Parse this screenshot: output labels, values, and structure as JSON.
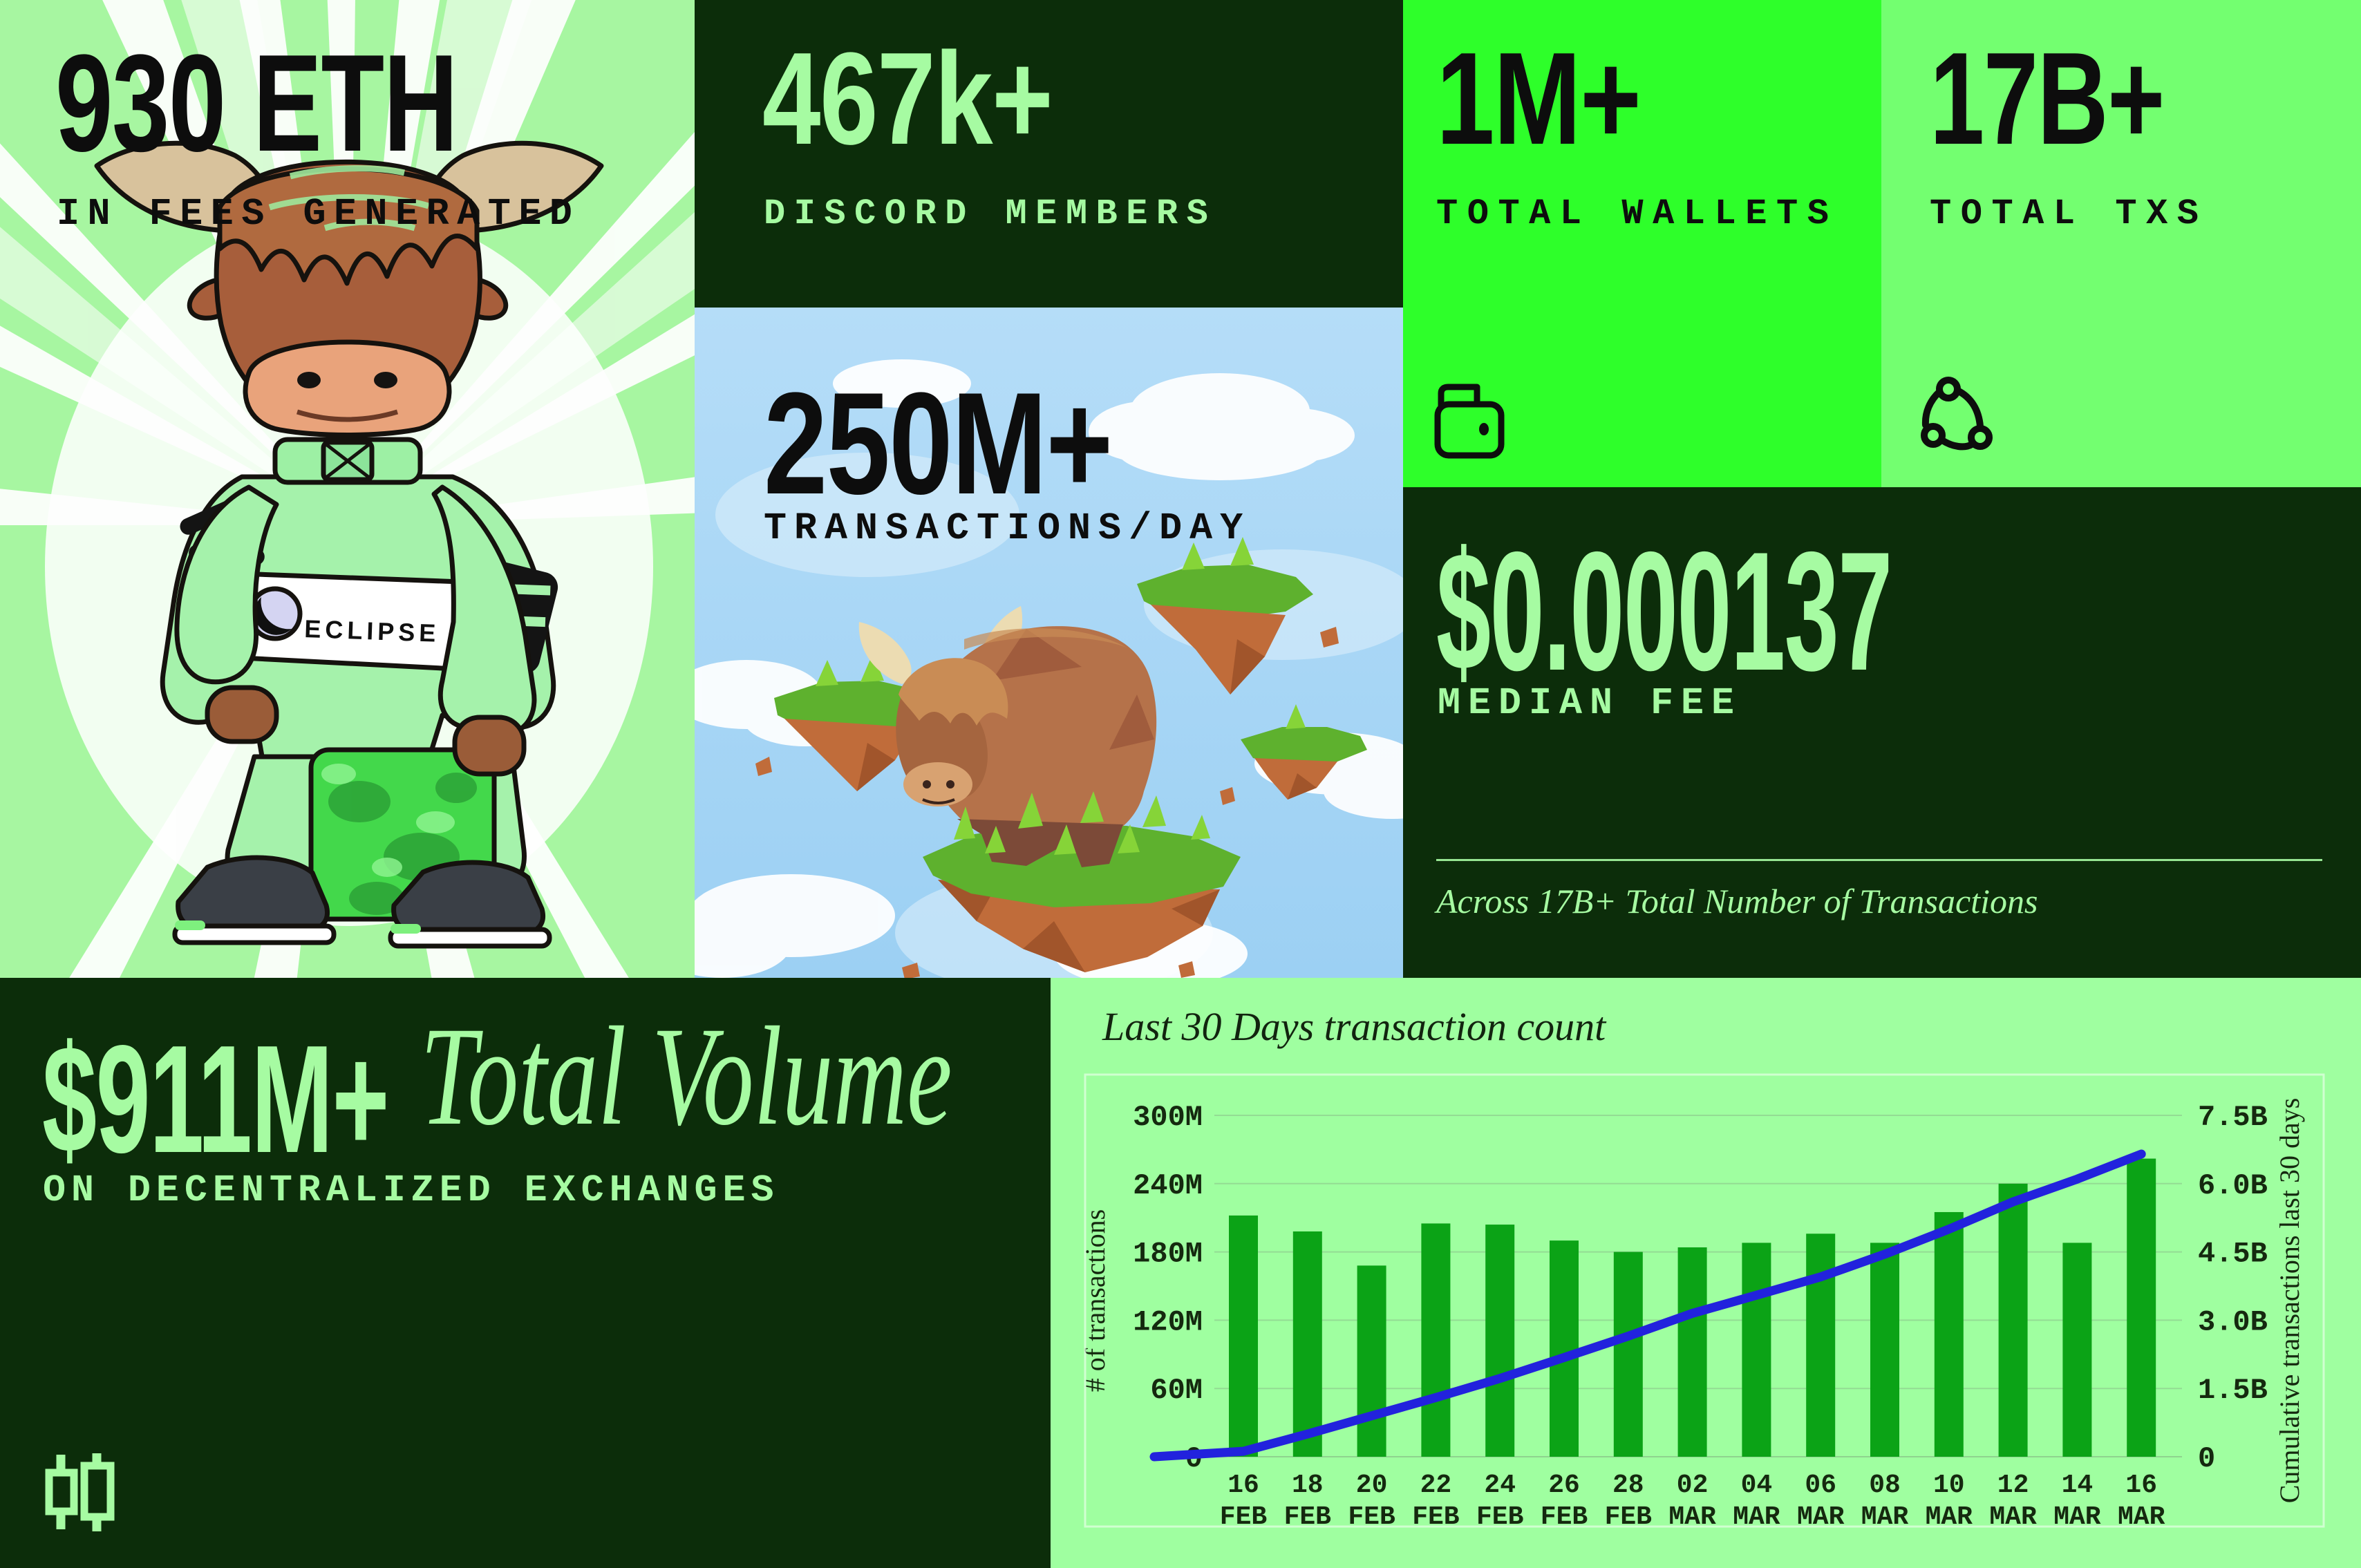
{
  "colors": {
    "light_green_bg": "#a7f6a1",
    "dark_green_bg": "#0c2d0a",
    "bright_green_bg": "#2eff2a",
    "mid_green_bg": "#73ff70",
    "chart_bg": "#9fffa0",
    "light_green_text": "#a6fba2",
    "black_text": "#0d0d0d",
    "bar_green": "#0ba316",
    "line_blue": "#2222dd",
    "sky_blue": "#aadcf8"
  },
  "icons": {
    "wallets": "wallet-icon",
    "total_txs": "cycle-icon",
    "volume": "candlestick-icon"
  },
  "panels": {
    "fees": {
      "value": "930 ETH",
      "label": "IN FEES GENERATED"
    },
    "discord": {
      "value": "467k+",
      "label": "DISCORD MEMBERS"
    },
    "wallets": {
      "value": "1M+",
      "label": "TOTAL WALLETS"
    },
    "total_txs": {
      "value": "17B+",
      "label": "TOTAL TXS"
    },
    "daily_txs": {
      "value": "250M+",
      "label": "TRANSACTIONS/DAY"
    },
    "median_fee": {
      "value": "$0.000137",
      "label": "MEDIAN FEE",
      "footnote": "Across 17B+ Total Number of Transactions"
    },
    "volume": {
      "value": "$911M+",
      "title": "Total Volume",
      "label": "ON DECENTRALIZED EXCHANGES"
    },
    "mascot": {
      "badge": "ECLIPSE"
    }
  },
  "chart_data": {
    "type": "bar+line",
    "title": "Last 30 Days transaction count",
    "categories": [
      "16 FEB",
      "18 FEB",
      "20 FEB",
      "22 FEB",
      "24 FEB",
      "26 FEB",
      "28 FEB",
      "02 MAR",
      "04 MAR",
      "06 MAR",
      "08 MAR",
      "10 MAR",
      "12 MAR",
      "14 MAR",
      "16 MAR"
    ],
    "bar_series": {
      "name": "# of transactions",
      "unit": "M",
      "values": [
        212,
        198,
        168,
        205,
        204,
        190,
        180,
        184,
        188,
        196,
        188,
        215,
        240,
        188,
        262
      ]
    },
    "line_series": {
      "name": "Cumulative transactions last 30 days",
      "unit": "B",
      "values": [
        0.12,
        0.5,
        0.9,
        1.3,
        1.72,
        2.18,
        2.65,
        3.15,
        3.55,
        3.95,
        4.45,
        5.0,
        5.6,
        6.1,
        6.65
      ]
    },
    "left_axis": {
      "label": "# of transactions",
      "ticks": [
        "0",
        "60M",
        "120M",
        "180M",
        "240M",
        "300M"
      ],
      "tick_step_m": 60
    },
    "right_axis": {
      "label": "Cumulative transactions last 30 days",
      "ticks": [
        "0",
        "1.5B",
        "3.0B",
        "4.5B",
        "6.0B",
        "7.5B"
      ],
      "tick_step_b": 1.5
    },
    "grid": true,
    "legend_position": "none",
    "colors": {
      "bar": "#0ba316",
      "line": "#2222dd"
    }
  }
}
